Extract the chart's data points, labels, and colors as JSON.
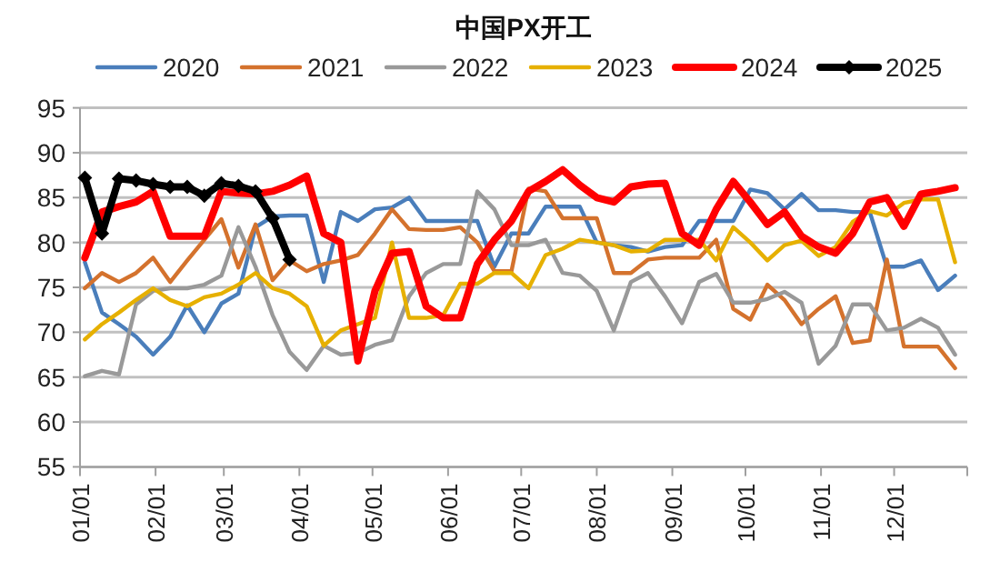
{
  "chart_data": {
    "type": "line",
    "title": "中国PX开工",
    "x": [
      "--01-03",
      "--01-10",
      "--01-17",
      "--01-24",
      "--01-31",
      "--02-07",
      "--02-14",
      "--02-21",
      "--02-28",
      "--03-07",
      "--03-14",
      "--03-21",
      "--03-28",
      "--04-04",
      "--04-11",
      "--04-18",
      "--04-25",
      "--05-02",
      "--05-09",
      "--05-16",
      "--05-23",
      "--05-30",
      "--06-06",
      "--06-13",
      "--06-20",
      "--06-27",
      "--07-04",
      "--07-11",
      "--07-18",
      "--07-25",
      "--08-01",
      "--08-08",
      "--08-15",
      "--08-22",
      "--08-29",
      "--09-05",
      "--09-12",
      "--09-19",
      "--09-26",
      "--10-03",
      "--10-10",
      "--10-17",
      "--10-24",
      "--10-31",
      "--11-07",
      "--11-14",
      "--11-21",
      "--11-28",
      "--12-05",
      "--12-12",
      "--12-19",
      "--12-26"
    ],
    "series": [
      {
        "name": "2020",
        "color": "#4a7ebb",
        "values": [
          77.8,
          72.2,
          70.9,
          69.5,
          67.5,
          69.5,
          73,
          70,
          73.2,
          74.3,
          81.7,
          82.9,
          83,
          83,
          75.6,
          83.4,
          82.4,
          83.7,
          83.9,
          85,
          82.4,
          82.4,
          82.4,
          82.4,
          77.3,
          81,
          81,
          84,
          84,
          84,
          80,
          79.7,
          79.5,
          79,
          79.5,
          79.7,
          82.4,
          82.4,
          82.4,
          85.9,
          85.5,
          83.7,
          85.4,
          83.6,
          83.6,
          83.4,
          83.4,
          77.3,
          77.3,
          78,
          74.7,
          76.3
        ]
      },
      {
        "name": "2021",
        "color": "#d4722d",
        "values": [
          74.9,
          76.6,
          75.6,
          76.6,
          78.3,
          75.6,
          78,
          80.3,
          82.6,
          77.2,
          82,
          75.8,
          78,
          76.8,
          77.6,
          78,
          78.6,
          81,
          83.7,
          81.5,
          81.4,
          81.4,
          81.7,
          80,
          76.8,
          76.8,
          86,
          85.7,
          82.7,
          82.7,
          82.7,
          76.6,
          76.6,
          78.1,
          78.3,
          78.3,
          78.3,
          80.3,
          72.6,
          71.4,
          75.3,
          73.6,
          70.9,
          72.6,
          74,
          68.8,
          69.1,
          78.1,
          68.4,
          68.4,
          68.4,
          66
        ]
      },
      {
        "name": "2022",
        "color": "#999999",
        "values": [
          65.1,
          65.7,
          65.3,
          73.1,
          74.6,
          74.9,
          74.9,
          75.3,
          76.3,
          81.7,
          77.3,
          71.9,
          67.8,
          65.8,
          68.5,
          67.5,
          67.7,
          68.6,
          69.1,
          74,
          76.6,
          77.6,
          77.6,
          85.7,
          83.7,
          79.7,
          79.7,
          80.3,
          76.6,
          76.3,
          74.6,
          70.2,
          75.6,
          76.6,
          74,
          71,
          75.6,
          76.5,
          73.3,
          73.3,
          73.7,
          74.5,
          73.3,
          66.5,
          68.5,
          73.1,
          73.1,
          70.2,
          70.5,
          71.5,
          70.5,
          67.5
        ]
      },
      {
        "name": "2023",
        "color": "#e6b000",
        "values": [
          69.2,
          70.9,
          72.2,
          73.6,
          74.9,
          73.6,
          72.9,
          73.9,
          74.3,
          75.3,
          76.6,
          74.9,
          74.3,
          72.9,
          68.5,
          70.2,
          70.9,
          71.6,
          80,
          71.6,
          71.6,
          71.9,
          75.4,
          75.4,
          76.6,
          76.6,
          74.9,
          78.6,
          79.3,
          80.3,
          80,
          79.7,
          79,
          79.1,
          80.3,
          80.3,
          80.3,
          78,
          81.7,
          80,
          78,
          79.7,
          80.2,
          78.5,
          79.5,
          82.3,
          83.5,
          83,
          84.4,
          84.8,
          84.8,
          77.8
        ]
      },
      {
        "name": "2024",
        "color": "#ff0000",
        "values": [
          78.3,
          83.4,
          84,
          84.5,
          85.7,
          80.7,
          80.7,
          80.7,
          85.7,
          85.5,
          85.4,
          85.7,
          86.4,
          87.4,
          81,
          80,
          66.8,
          74.6,
          78.8,
          79,
          72.9,
          71.6,
          71.6,
          77.6,
          80.3,
          82.4,
          85.7,
          86.8,
          88.1,
          86.4,
          85,
          84.5,
          86.2,
          86.5,
          86.6,
          81,
          79.7,
          83.7,
          86.8,
          84.5,
          82,
          83.4,
          80.7,
          79.5,
          78.8,
          81,
          84.5,
          85,
          81.8,
          85.4,
          85.7,
          86.1
        ]
      },
      {
        "name": "2025",
        "color": "#000000",
        "marker": "diamond",
        "values": [
          87.2,
          81,
          87.1,
          86.9,
          86.5,
          86.2,
          86.2,
          85.2,
          86.6,
          86.3,
          85.7,
          82.7,
          78.1,
          null,
          null,
          null,
          null,
          null,
          null,
          null,
          null,
          null,
          null,
          null,
          null,
          null,
          null,
          null,
          null,
          null,
          null,
          null,
          null,
          null,
          null,
          null,
          null,
          null,
          null,
          null,
          null,
          null,
          null,
          null,
          null,
          null,
          null,
          null,
          null,
          null,
          null,
          null
        ]
      }
    ],
    "xlim": [
      "--01-01",
      "--12-31"
    ],
    "xticks": [
      {
        "value": "--01-01",
        "label": "01/01"
      },
      {
        "value": "--02-01",
        "label": "02/01"
      },
      {
        "value": "--03-01",
        "label": "03/01"
      },
      {
        "value": "--04-01",
        "label": "04/01"
      },
      {
        "value": "--05-01",
        "label": "05/01"
      },
      {
        "value": "--06-01",
        "label": "06/01"
      },
      {
        "value": "--07-01",
        "label": "07/01"
      },
      {
        "value": "--08-01",
        "label": "08/01"
      },
      {
        "value": "--09-01",
        "label": "09/01"
      },
      {
        "value": "--10-01",
        "label": "10/01"
      },
      {
        "value": "--11-01",
        "label": "11/01"
      },
      {
        "value": "--12-01",
        "label": "12/01"
      },
      {
        "value": "--12-31",
        "label": null
      }
    ],
    "ylim": [
      55,
      95
    ],
    "yticks": [
      55,
      60,
      65,
      70,
      75,
      80,
      85,
      90,
      95
    ],
    "grid": "y",
    "legend": "top",
    "line_style": "solid"
  }
}
